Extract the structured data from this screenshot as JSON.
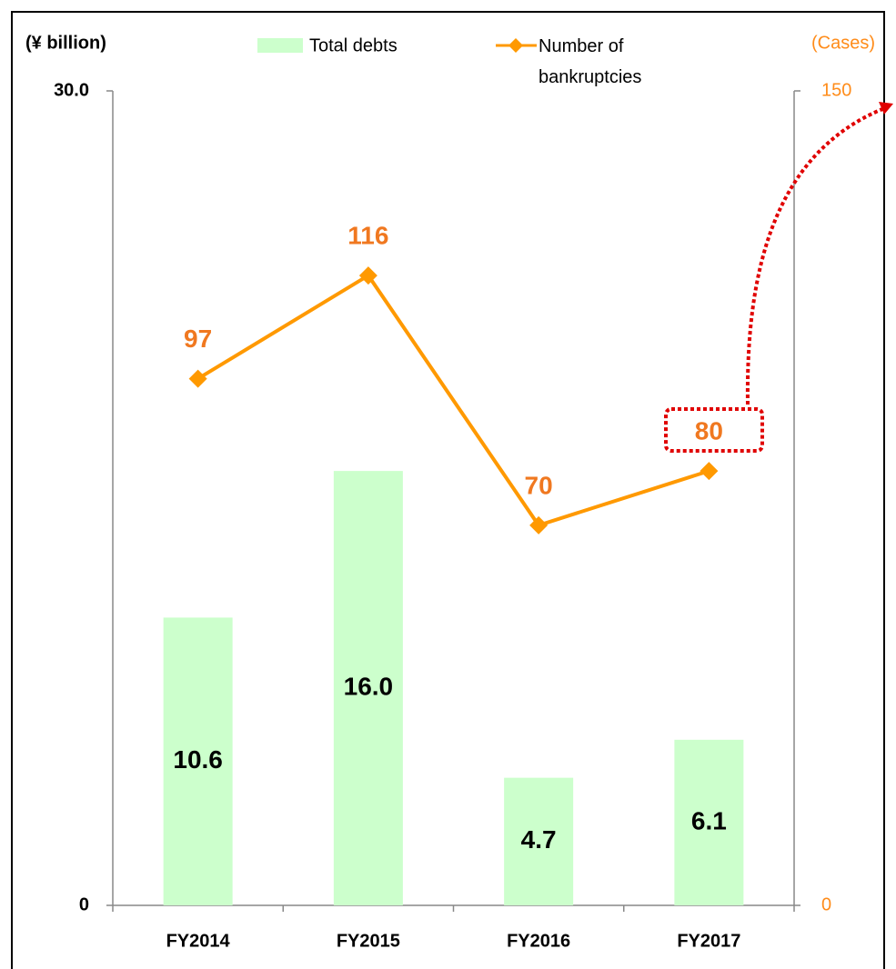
{
  "chart_data": {
    "type": "bar",
    "y_label": "(¥ billion)",
    "y2_label": "(Cases)",
    "categories": [
      "FY2014",
      "FY2015",
      "FY2016",
      "FY2017"
    ],
    "series": [
      {
        "name": "Total debts",
        "type": "bar",
        "color": "#ccffcc",
        "values": [
          10.6,
          16.0,
          4.7,
          6.1
        ],
        "value_labels": [
          "10.6",
          "16.0",
          "4.7",
          "6.1"
        ]
      },
      {
        "name": "Number of bankruptcies",
        "type": "line",
        "axis": "y2",
        "color": "#ff9900",
        "values": [
          97,
          116,
          70,
          80
        ]
      }
    ],
    "ylim": [
      0,
      30
    ],
    "yticks": [
      0,
      {
        "value": 30,
        "label": "30.0"
      }
    ],
    "y2lim": [
      0,
      150
    ],
    "y2ticks": [
      0,
      150
    ]
  }
}
